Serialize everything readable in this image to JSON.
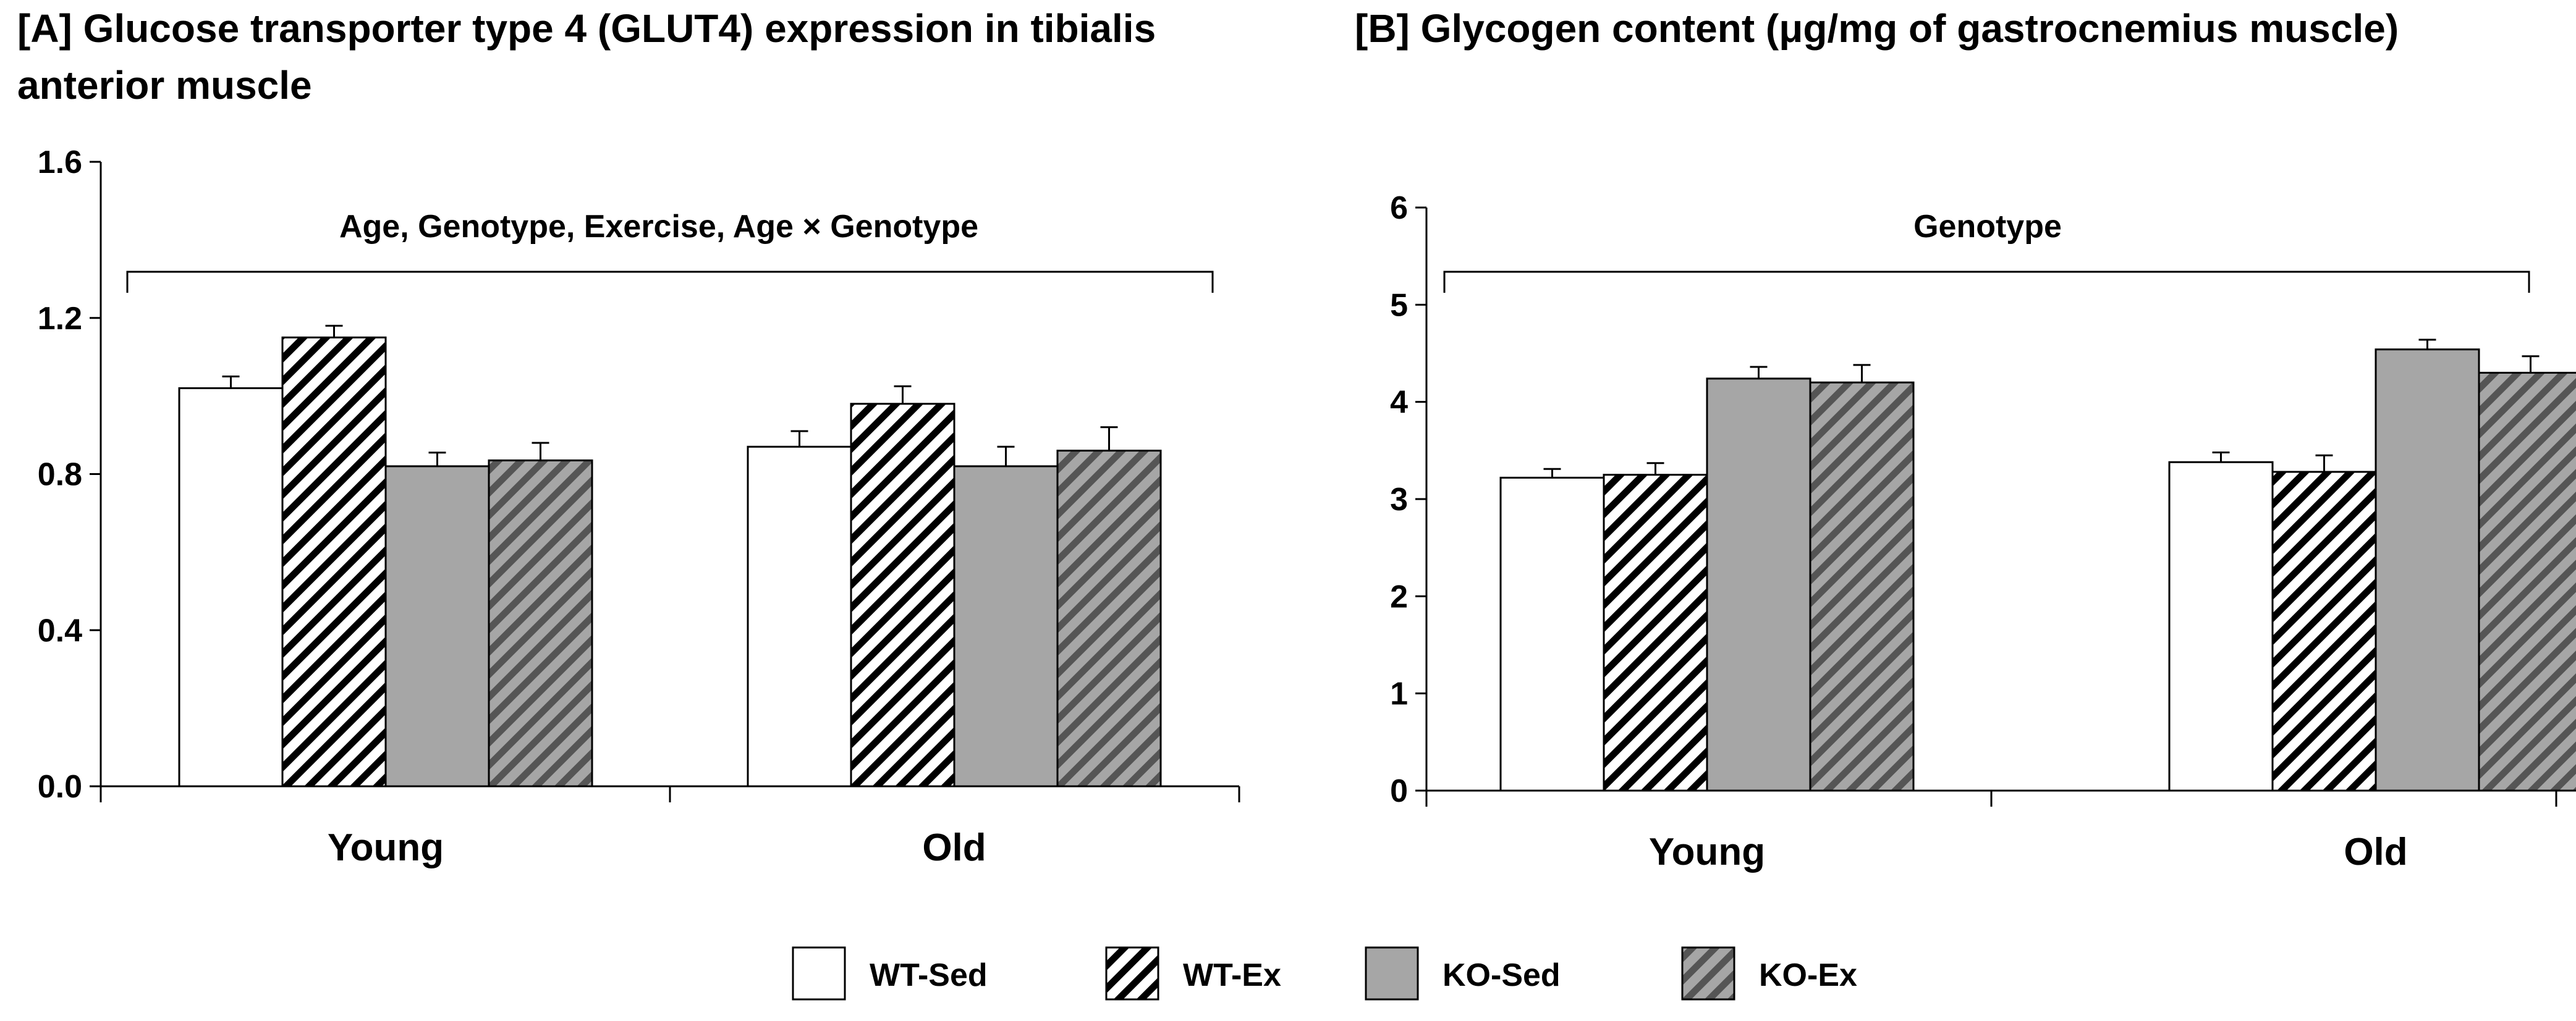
{
  "legend": [
    {
      "name": "WT-Sed",
      "pattern": "white"
    },
    {
      "name": "WT-Ex",
      "pattern": "hatch-white"
    },
    {
      "name": "KO-Sed",
      "pattern": "gray"
    },
    {
      "name": "KO-Ex",
      "pattern": "hatch-gray"
    }
  ],
  "colors": {
    "gray_fill": "#a6a6a6",
    "hatch_dark": "#555555",
    "outline": "#000000",
    "white_fill": "#ffffff"
  },
  "chart_data": [
    {
      "id": "A",
      "type": "bar",
      "title_lines": [
        "[A] Glucose transporter type 4 (GLUT4) expression in tibialis",
        "anterior muscle"
      ],
      "categories": [
        "Young",
        "Old"
      ],
      "ylim": [
        0,
        1.6
      ],
      "yticks": [
        "0.0",
        "0.4",
        "0.8",
        "1.2",
        "1.6"
      ],
      "annotation": "Age, Genotype, Exercise, Age × Genotype",
      "series": [
        {
          "name": "WT-Sed",
          "values": [
            1.02,
            0.87
          ],
          "errors": [
            0.03,
            0.04
          ]
        },
        {
          "name": "WT-Ex",
          "values": [
            1.15,
            0.98
          ],
          "errors": [
            0.03,
            0.045
          ]
        },
        {
          "name": "KO-Sed",
          "values": [
            0.82,
            0.82
          ],
          "errors": [
            0.035,
            0.05
          ]
        },
        {
          "name": "KO-Ex",
          "values": [
            0.835,
            0.86
          ],
          "errors": [
            0.045,
            0.06
          ]
        }
      ]
    },
    {
      "id": "B",
      "type": "bar",
      "title_lines": [
        "[B] Glycogen content (μg/mg of gastrocnemius muscle)"
      ],
      "categories": [
        "Young",
        "Old"
      ],
      "ylim": [
        0,
        6
      ],
      "yticks": [
        "0",
        "1",
        "2",
        "3",
        "4",
        "5",
        "6"
      ],
      "annotation": "Genotype",
      "series": [
        {
          "name": "WT-Sed",
          "values": [
            3.22,
            3.38
          ],
          "errors": [
            0.09,
            0.1
          ]
        },
        {
          "name": "WT-Ex",
          "values": [
            3.25,
            3.28
          ],
          "errors": [
            0.12,
            0.17
          ]
        },
        {
          "name": "KO-Sed",
          "values": [
            4.24,
            4.54
          ],
          "errors": [
            0.12,
            0.1
          ]
        },
        {
          "name": "KO-Ex",
          "values": [
            4.2,
            4.3
          ],
          "errors": [
            0.18,
            0.17
          ]
        }
      ]
    }
  ]
}
